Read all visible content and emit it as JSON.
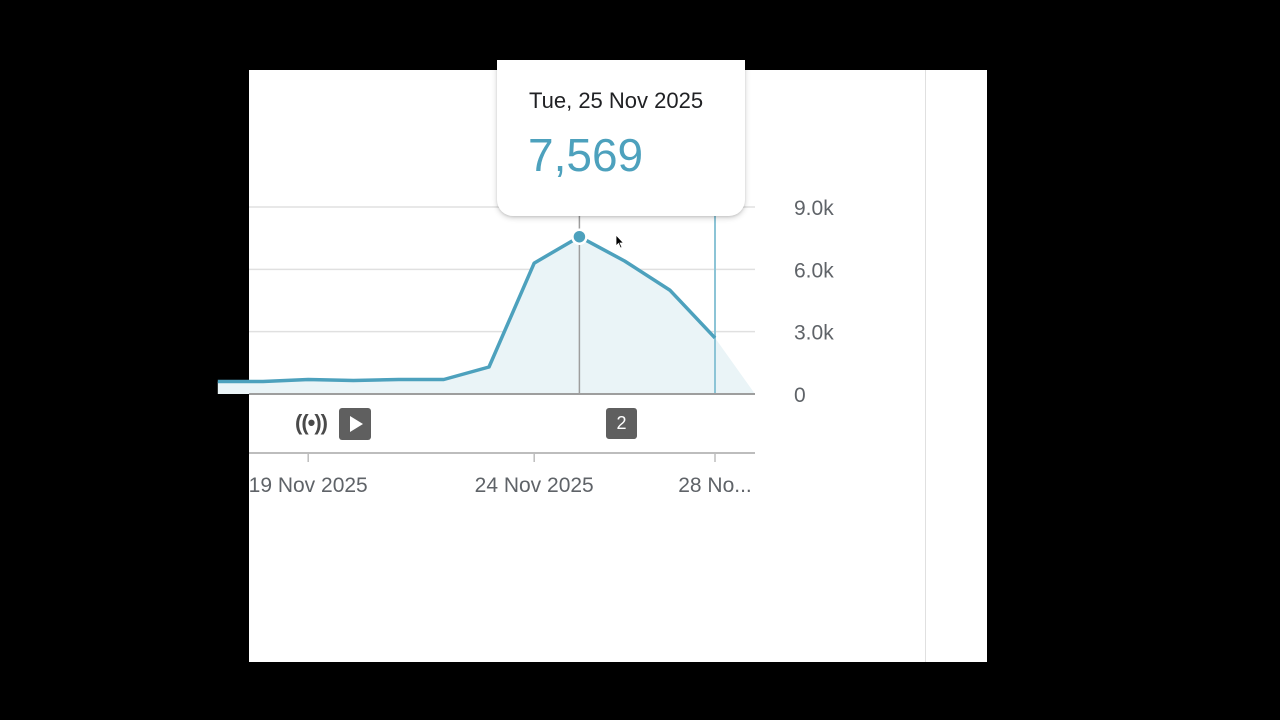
{
  "tooltip": {
    "date": "Tue, 25 Nov 2025",
    "value": "7,569"
  },
  "annotation": {
    "count": "2"
  },
  "colors": {
    "line": "#4da1bd",
    "area": "#eaf4f7",
    "grid": "#e0e0e0",
    "axis_text": "#5f6368",
    "badge": "#5f5f5f"
  },
  "icons": {
    "live": "broadcast-icon",
    "play": "play-icon"
  },
  "chart_data": {
    "type": "area",
    "x": [
      "2025-11-17",
      "2025-11-18",
      "2025-11-19",
      "2025-11-20",
      "2025-11-21",
      "2025-11-22",
      "2025-11-23",
      "2025-11-24",
      "2025-11-25",
      "2025-11-26",
      "2025-11-27",
      "2025-11-28"
    ],
    "values": [
      600,
      600,
      700,
      650,
      700,
      700,
      1300,
      6300,
      7569,
      6400,
      5000,
      2700
    ],
    "ylim": [
      0,
      9000
    ],
    "y_ticks": [
      "0",
      "3.0k",
      "6.0k",
      "9.0k"
    ],
    "x_ticks": [
      "19 Nov 2025",
      "24 Nov 2025",
      "28 No..."
    ],
    "x_tick_dates": [
      "2025-11-19",
      "2025-11-24",
      "2025-11-28"
    ],
    "highlighted": "2025-11-25",
    "markers": [
      "2025-11-28"
    ],
    "grid": true
  }
}
